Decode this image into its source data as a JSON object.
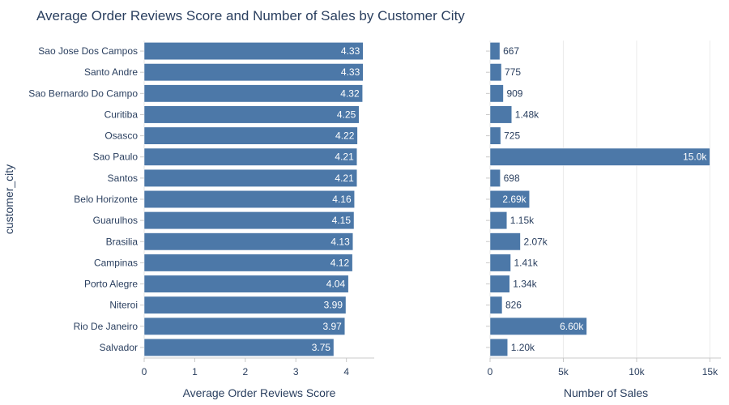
{
  "chart_data": {
    "type": "bar",
    "orientation": "horizontal",
    "title": "Average Order Reviews Score and Number of Sales by Customer City",
    "y_axis_title": "customer_city",
    "bar_color": "#4c78a8",
    "categories": [
      "Sao Jose Dos Campos",
      "Santo Andre",
      "Sao Bernardo Do Campo",
      "Curitiba",
      "Osasco",
      "Sao Paulo",
      "Santos",
      "Belo Horizonte",
      "Guarulhos",
      "Brasilia",
      "Campinas",
      "Porto Alegre",
      "Niteroi",
      "Rio De Janeiro",
      "Salvador"
    ],
    "panels": [
      {
        "xlabel": "Average Order Reviews Score",
        "xlim": [
          0,
          4.55
        ],
        "ticks": [
          0,
          1,
          2,
          3,
          4
        ],
        "tick_labels": [
          "0",
          "1",
          "2",
          "3",
          "4"
        ],
        "grid": false,
        "values": [
          4.33,
          4.33,
          4.32,
          4.25,
          4.22,
          4.21,
          4.21,
          4.16,
          4.15,
          4.13,
          4.12,
          4.04,
          3.99,
          3.97,
          3.75
        ],
        "labels": [
          "4.33",
          "4.33",
          "4.32",
          "4.25",
          "4.22",
          "4.21",
          "4.21",
          "4.16",
          "4.15",
          "4.13",
          "4.12",
          "4.04",
          "3.99",
          "3.97",
          "3.75"
        ]
      },
      {
        "xlabel": "Number of Sales",
        "xlim": [
          0,
          15750
        ],
        "ticks": [
          0,
          5000,
          10000,
          15000
        ],
        "tick_labels": [
          "0",
          "5k",
          "10k",
          "15k"
        ],
        "grid": true,
        "values": [
          667,
          775,
          909,
          1480,
          725,
          15000,
          698,
          2690,
          1150,
          2070,
          1410,
          1340,
          826,
          6600,
          1200
        ],
        "labels": [
          "667",
          "775",
          "909",
          "1.48k",
          "725",
          "15.0k",
          "698",
          "2.69k",
          "1.15k",
          "2.07k",
          "1.41k",
          "1.34k",
          "826",
          "6.60k",
          "1.20k"
        ]
      }
    ]
  }
}
